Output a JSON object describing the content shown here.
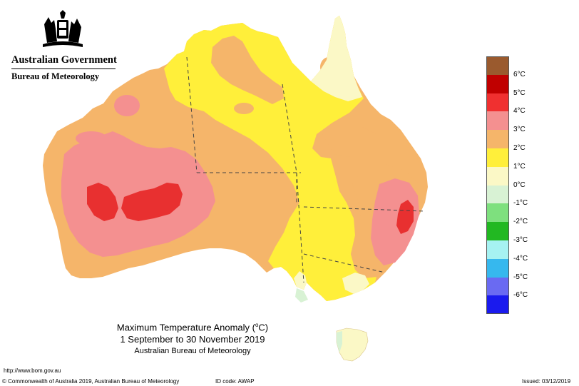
{
  "header": {
    "government": "Australian Government",
    "bureau": "Bureau of Meteorology"
  },
  "caption": {
    "title_main": "Maximum Temperature Anomaly (",
    "title_deg": "o",
    "title_unit": "C)",
    "period": "1 September to 30 November 2019",
    "source": "Australian Bureau of Meteorology"
  },
  "legend": {
    "items": [
      {
        "label": "6°C",
        "color": "#9a5a2e"
      },
      {
        "label": "5°C",
        "color": "#c00000"
      },
      {
        "label": "4°C",
        "color": "#f03030"
      },
      {
        "label": "3°C",
        "color": "#f49090"
      },
      {
        "label": "2°C",
        "color": "#f5b56a"
      },
      {
        "label": "1°C",
        "color": "#ffef3a"
      },
      {
        "label": "0°C",
        "color": "#fbf8c6"
      },
      {
        "label": "-1°C",
        "color": "#d8f2d4"
      },
      {
        "label": "-2°C",
        "color": "#7ee07e"
      },
      {
        "label": "-3°C",
        "color": "#22b822"
      },
      {
        "label": "-4°C",
        "color": "#a6f2f2"
      },
      {
        "label": "-5°C",
        "color": "#36b8ee"
      },
      {
        "label": "-6°C",
        "color": "#6a6af2"
      },
      {
        "label": "",
        "color": "#1a1aee"
      }
    ]
  },
  "map": {
    "colors": {
      "ocean": "#ffffff",
      "plus2": "#f5b56a",
      "plus1": "#ffef3a",
      "zero": "#fbf8c6",
      "minus1": "#d8f2d4",
      "plus3": "#f49090",
      "plus4": "#e83030",
      "border": "#444444"
    }
  },
  "footer": {
    "url": "http://www.bom.gov.au",
    "copyright": "© Commonwealth of Australia 2019, Australian Bureau of Meteorology",
    "id_code": "ID code: AWAP",
    "issued": "Issued: 03/12/2019"
  }
}
